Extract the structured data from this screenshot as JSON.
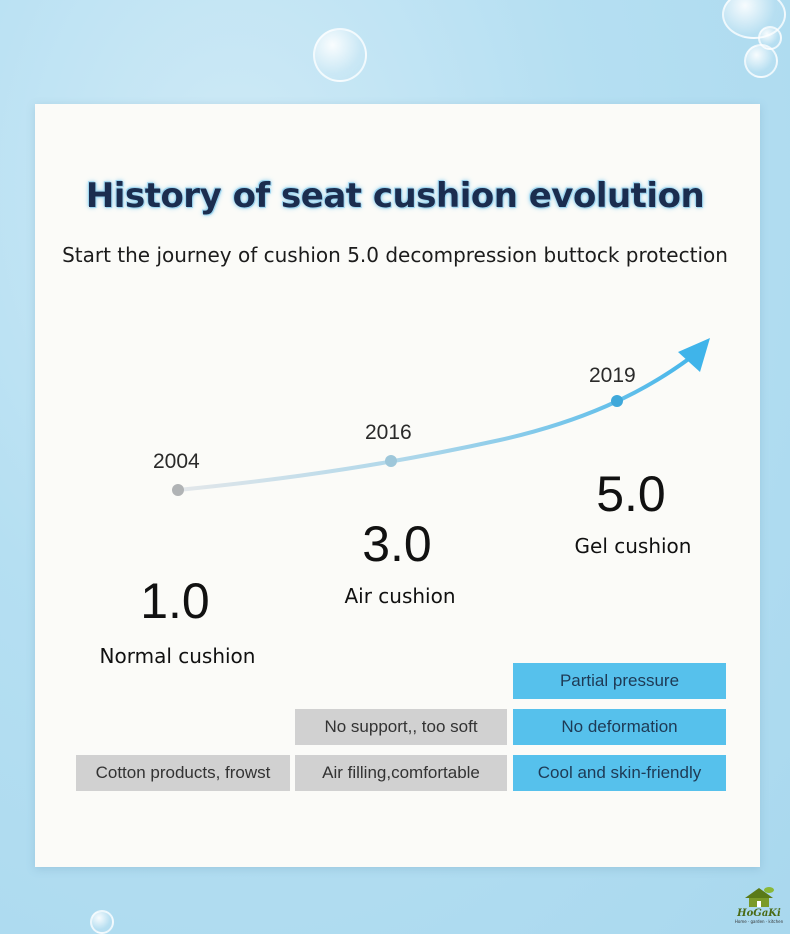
{
  "title": "History of seat cushion evolution",
  "subtitle": "Start the journey of cushion 5.0 decompression buttock protection",
  "timeline": [
    {
      "year": "2004",
      "version": "1.0",
      "name": "Normal cushion"
    },
    {
      "year": "2016",
      "version": "3.0",
      "name": "Air cushion"
    },
    {
      "year": "2019",
      "version": "5.0",
      "name": "Gel cushion"
    }
  ],
  "features": {
    "normal": [
      "Cotton products, frowst"
    ],
    "air": [
      "No support,, too soft",
      "Air filling,comfortable"
    ],
    "gel": [
      "Partial pressure",
      "No deformation",
      "Cool and skin-friendly"
    ]
  },
  "colors": {
    "accent": "#56c1ec",
    "gray_cell": "#d1d1d1",
    "title": "#1b2d4f"
  },
  "logo": {
    "brand": "HoGaKi",
    "tagline": "Home · garden · kitchen",
    "icon": "house-leaf-icon"
  }
}
